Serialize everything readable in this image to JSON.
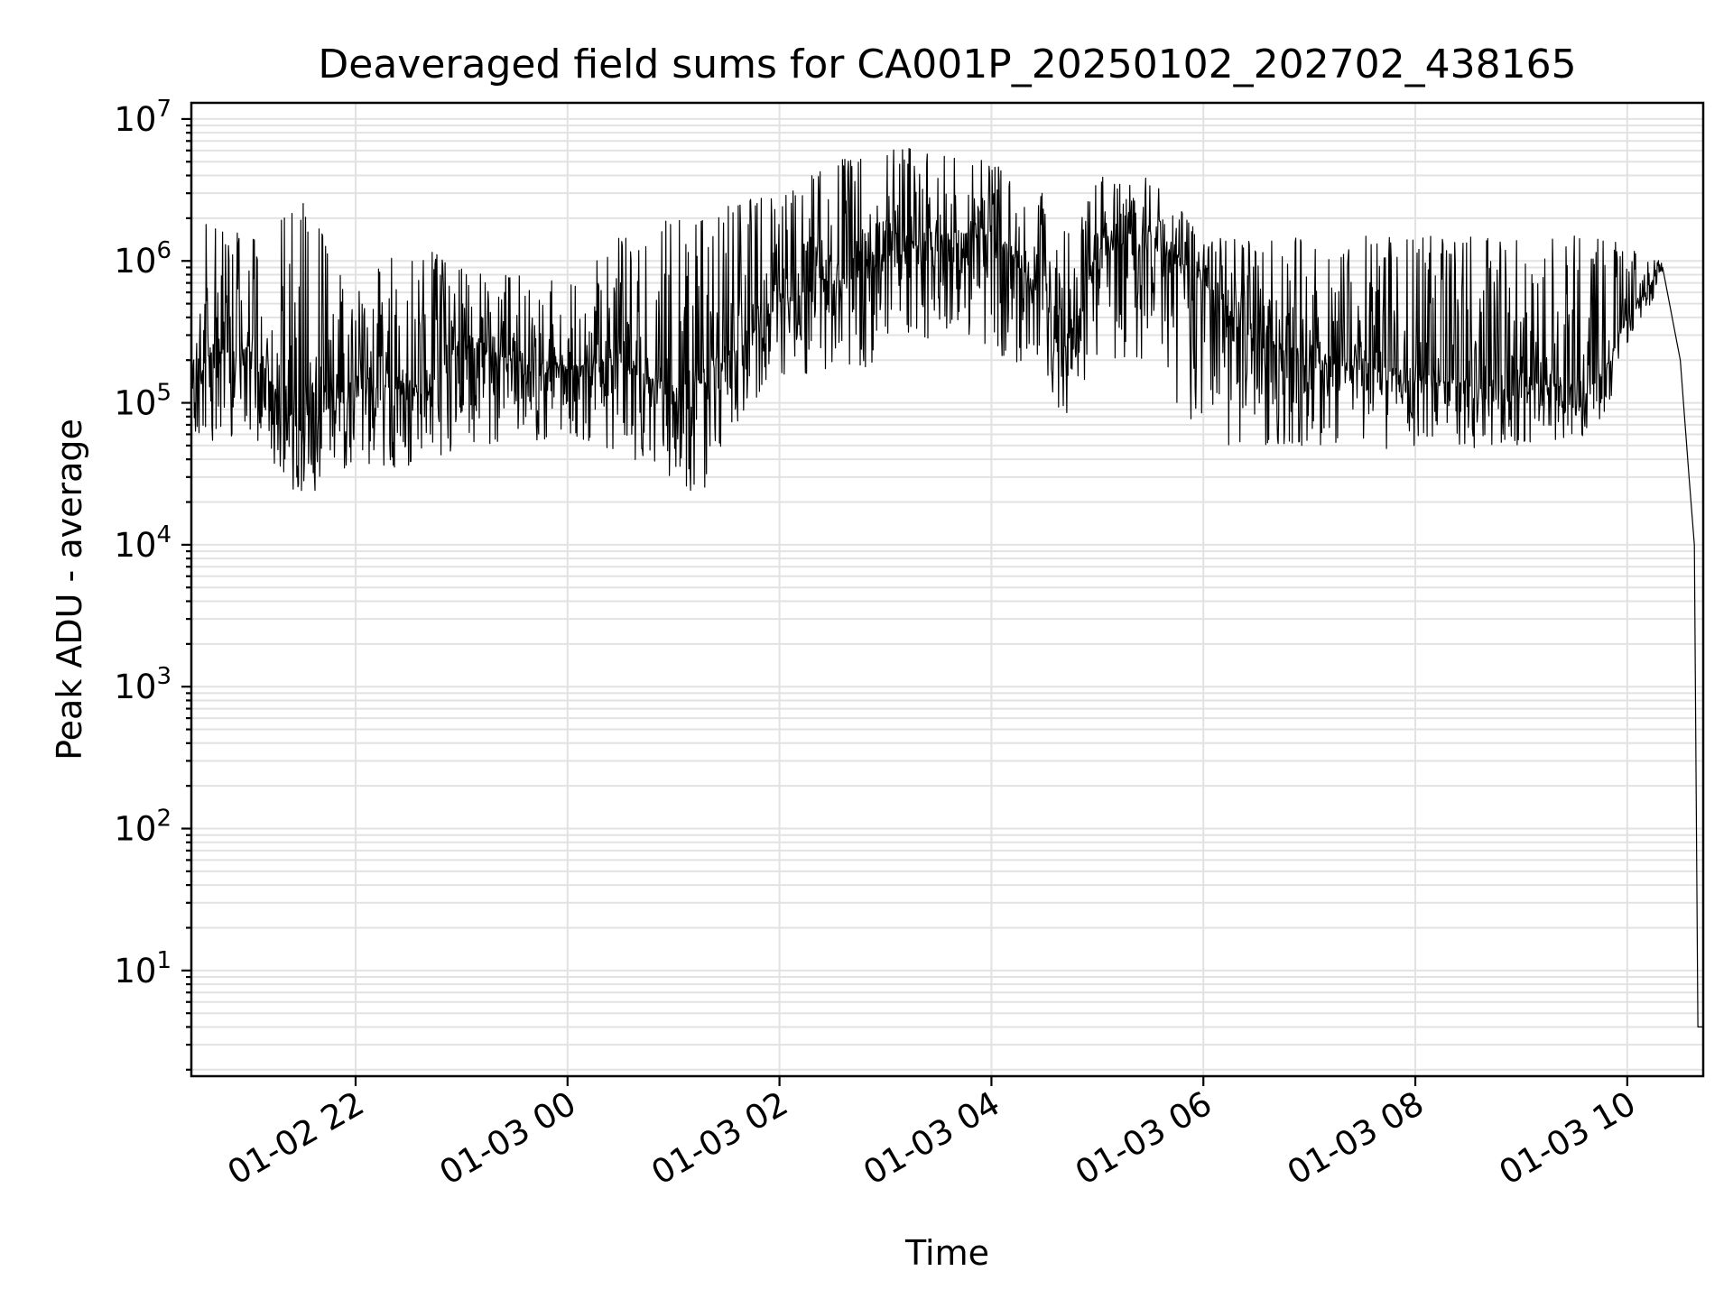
{
  "chart_data": {
    "type": "line",
    "title": "Deaveraged field sums for CA001P_20250102_202702_438165",
    "xlabel": "Time",
    "ylabel": "Peak ADU - average",
    "yscale": "log",
    "xlim": [
      "2025-01-02 20:27",
      "2025-01-03 10:43"
    ],
    "ylim": [
      1.8,
      13000000
    ],
    "grid": "on (major and minor)",
    "line_color": "#000000",
    "xticks": [
      {
        "value": "2025-01-02 22:00",
        "label": "01-02 22"
      },
      {
        "value": "2025-01-03 00:00",
        "label": "01-03 00"
      },
      {
        "value": "2025-01-03 02:00",
        "label": "01-03 02"
      },
      {
        "value": "2025-01-03 04:00",
        "label": "01-03 04"
      },
      {
        "value": "2025-01-03 06:00",
        "label": "01-03 06"
      },
      {
        "value": "2025-01-03 08:00",
        "label": "01-03 08"
      },
      {
        "value": "2025-01-03 10:00",
        "label": "01-03 10"
      }
    ],
    "yticks": [
      {
        "value": 10,
        "base": "10",
        "exp": "1"
      },
      {
        "value": 100,
        "base": "10",
        "exp": "2"
      },
      {
        "value": 1000,
        "base": "10",
        "exp": "3"
      },
      {
        "value": 10000,
        "base": "10",
        "exp": "4"
      },
      {
        "value": 100000,
        "base": "10",
        "exp": "5"
      },
      {
        "value": 1000000,
        "base": "10",
        "exp": "6"
      },
      {
        "value": 10000000,
        "base": "10",
        "exp": "7"
      }
    ],
    "series": [
      {
        "envelope": [
          {
            "x": "2025-01-02 20:27",
            "low": 50000,
            "high": 2000000
          },
          {
            "x": "2025-01-02 21:00",
            "low": 60000,
            "high": 1500000
          },
          {
            "x": "2025-01-02 21:30",
            "low": 20000,
            "high": 2700000
          },
          {
            "x": "2025-01-02 22:00",
            "low": 35000,
            "high": 600000
          },
          {
            "x": "2025-01-02 22:30",
            "low": 35000,
            "high": 1600000
          },
          {
            "x": "2025-01-02 23:00",
            "low": 45000,
            "high": 900000
          },
          {
            "x": "2025-01-02 23:30",
            "low": 50000,
            "high": 800000
          },
          {
            "x": "2025-01-03 00:00",
            "low": 60000,
            "high": 700000
          },
          {
            "x": "2025-01-03 00:30",
            "low": 40000,
            "high": 1500000
          },
          {
            "x": "2025-01-03 01:00",
            "low": 30000,
            "high": 2000000
          },
          {
            "x": "2025-01-03 01:15",
            "low": 20000,
            "high": 2000000
          },
          {
            "x": "2025-01-03 01:30",
            "low": 60000,
            "high": 2500000
          },
          {
            "x": "2025-01-03 02:00",
            "low": 150000,
            "high": 3000000
          },
          {
            "x": "2025-01-03 02:30",
            "low": 150000,
            "high": 5000000
          },
          {
            "x": "2025-01-03 03:00",
            "low": 200000,
            "high": 6000000
          },
          {
            "x": "2025-01-03 03:30",
            "low": 300000,
            "high": 6500000
          },
          {
            "x": "2025-01-03 04:00",
            "low": 250000,
            "high": 5000000
          },
          {
            "x": "2025-01-03 04:30",
            "low": 100000,
            "high": 3000000
          },
          {
            "x": "2025-01-03 04:45",
            "low": 80000,
            "high": 1500000
          },
          {
            "x": "2025-01-03 05:00",
            "low": 200000,
            "high": 4000000
          },
          {
            "x": "2025-01-03 05:30",
            "low": 200000,
            "high": 4000000
          },
          {
            "x": "2025-01-03 06:00",
            "low": 50000,
            "high": 1500000
          },
          {
            "x": "2025-01-03 07:00",
            "low": 50000,
            "high": 1500000
          },
          {
            "x": "2025-01-03 08:00",
            "low": 45000,
            "high": 1500000
          },
          {
            "x": "2025-01-03 09:00",
            "low": 50000,
            "high": 1500000
          },
          {
            "x": "2025-01-03 09:45",
            "low": 60000,
            "high": 1500000
          },
          {
            "x": "2025-01-03 10:00",
            "low": 250000,
            "high": 1300000
          },
          {
            "x": "2025-01-03 10:20",
            "low": 700000,
            "high": 1000000
          }
        ],
        "trend": [
          {
            "x": "2025-01-02 20:27",
            "y": 200000
          },
          {
            "x": "2025-01-02 21:00",
            "y": 250000
          },
          {
            "x": "2025-01-02 21:30",
            "y": 60000
          },
          {
            "x": "2025-01-02 22:00",
            "y": 150000
          },
          {
            "x": "2025-01-02 22:30",
            "y": 120000
          },
          {
            "x": "2025-01-02 23:00",
            "y": 250000
          },
          {
            "x": "2025-01-02 23:30",
            "y": 200000
          },
          {
            "x": "2025-01-03 00:00",
            "y": 180000
          },
          {
            "x": "2025-01-03 00:30",
            "y": 200000
          },
          {
            "x": "2025-01-03 01:00",
            "y": 120000
          },
          {
            "x": "2025-01-03 01:30",
            "y": 200000
          },
          {
            "x": "2025-01-03 02:00",
            "y": 500000
          },
          {
            "x": "2025-01-03 02:30",
            "y": 800000
          },
          {
            "x": "2025-01-03 03:00",
            "y": 1000000
          },
          {
            "x": "2025-01-03 03:30",
            "y": 1500000
          },
          {
            "x": "2025-01-03 04:00",
            "y": 1500000
          },
          {
            "x": "2025-01-03 04:30",
            "y": 600000
          },
          {
            "x": "2025-01-03 04:45",
            "y": 200000
          },
          {
            "x": "2025-01-03 05:00",
            "y": 1200000
          },
          {
            "x": "2025-01-03 05:30",
            "y": 1500000
          },
          {
            "x": "2025-01-03 06:00",
            "y": 700000
          },
          {
            "x": "2025-01-03 06:30",
            "y": 300000
          },
          {
            "x": "2025-01-03 07:00",
            "y": 200000
          },
          {
            "x": "2025-01-03 08:00",
            "y": 150000
          },
          {
            "x": "2025-01-03 09:00",
            "y": 120000
          },
          {
            "x": "2025-01-03 09:45",
            "y": 150000
          },
          {
            "x": "2025-01-03 10:00",
            "y": 400000
          },
          {
            "x": "2025-01-03 10:20",
            "y": 900000
          },
          {
            "x": "2025-01-03 10:30",
            "y": 200000
          },
          {
            "x": "2025-01-03 10:35",
            "y": 30000
          },
          {
            "x": "2025-01-03 10:38",
            "y": 10000
          },
          {
            "x": "2025-01-03 10:40",
            "y": 4
          },
          {
            "x": "2025-01-03 10:43",
            "y": 4
          }
        ]
      }
    ]
  }
}
